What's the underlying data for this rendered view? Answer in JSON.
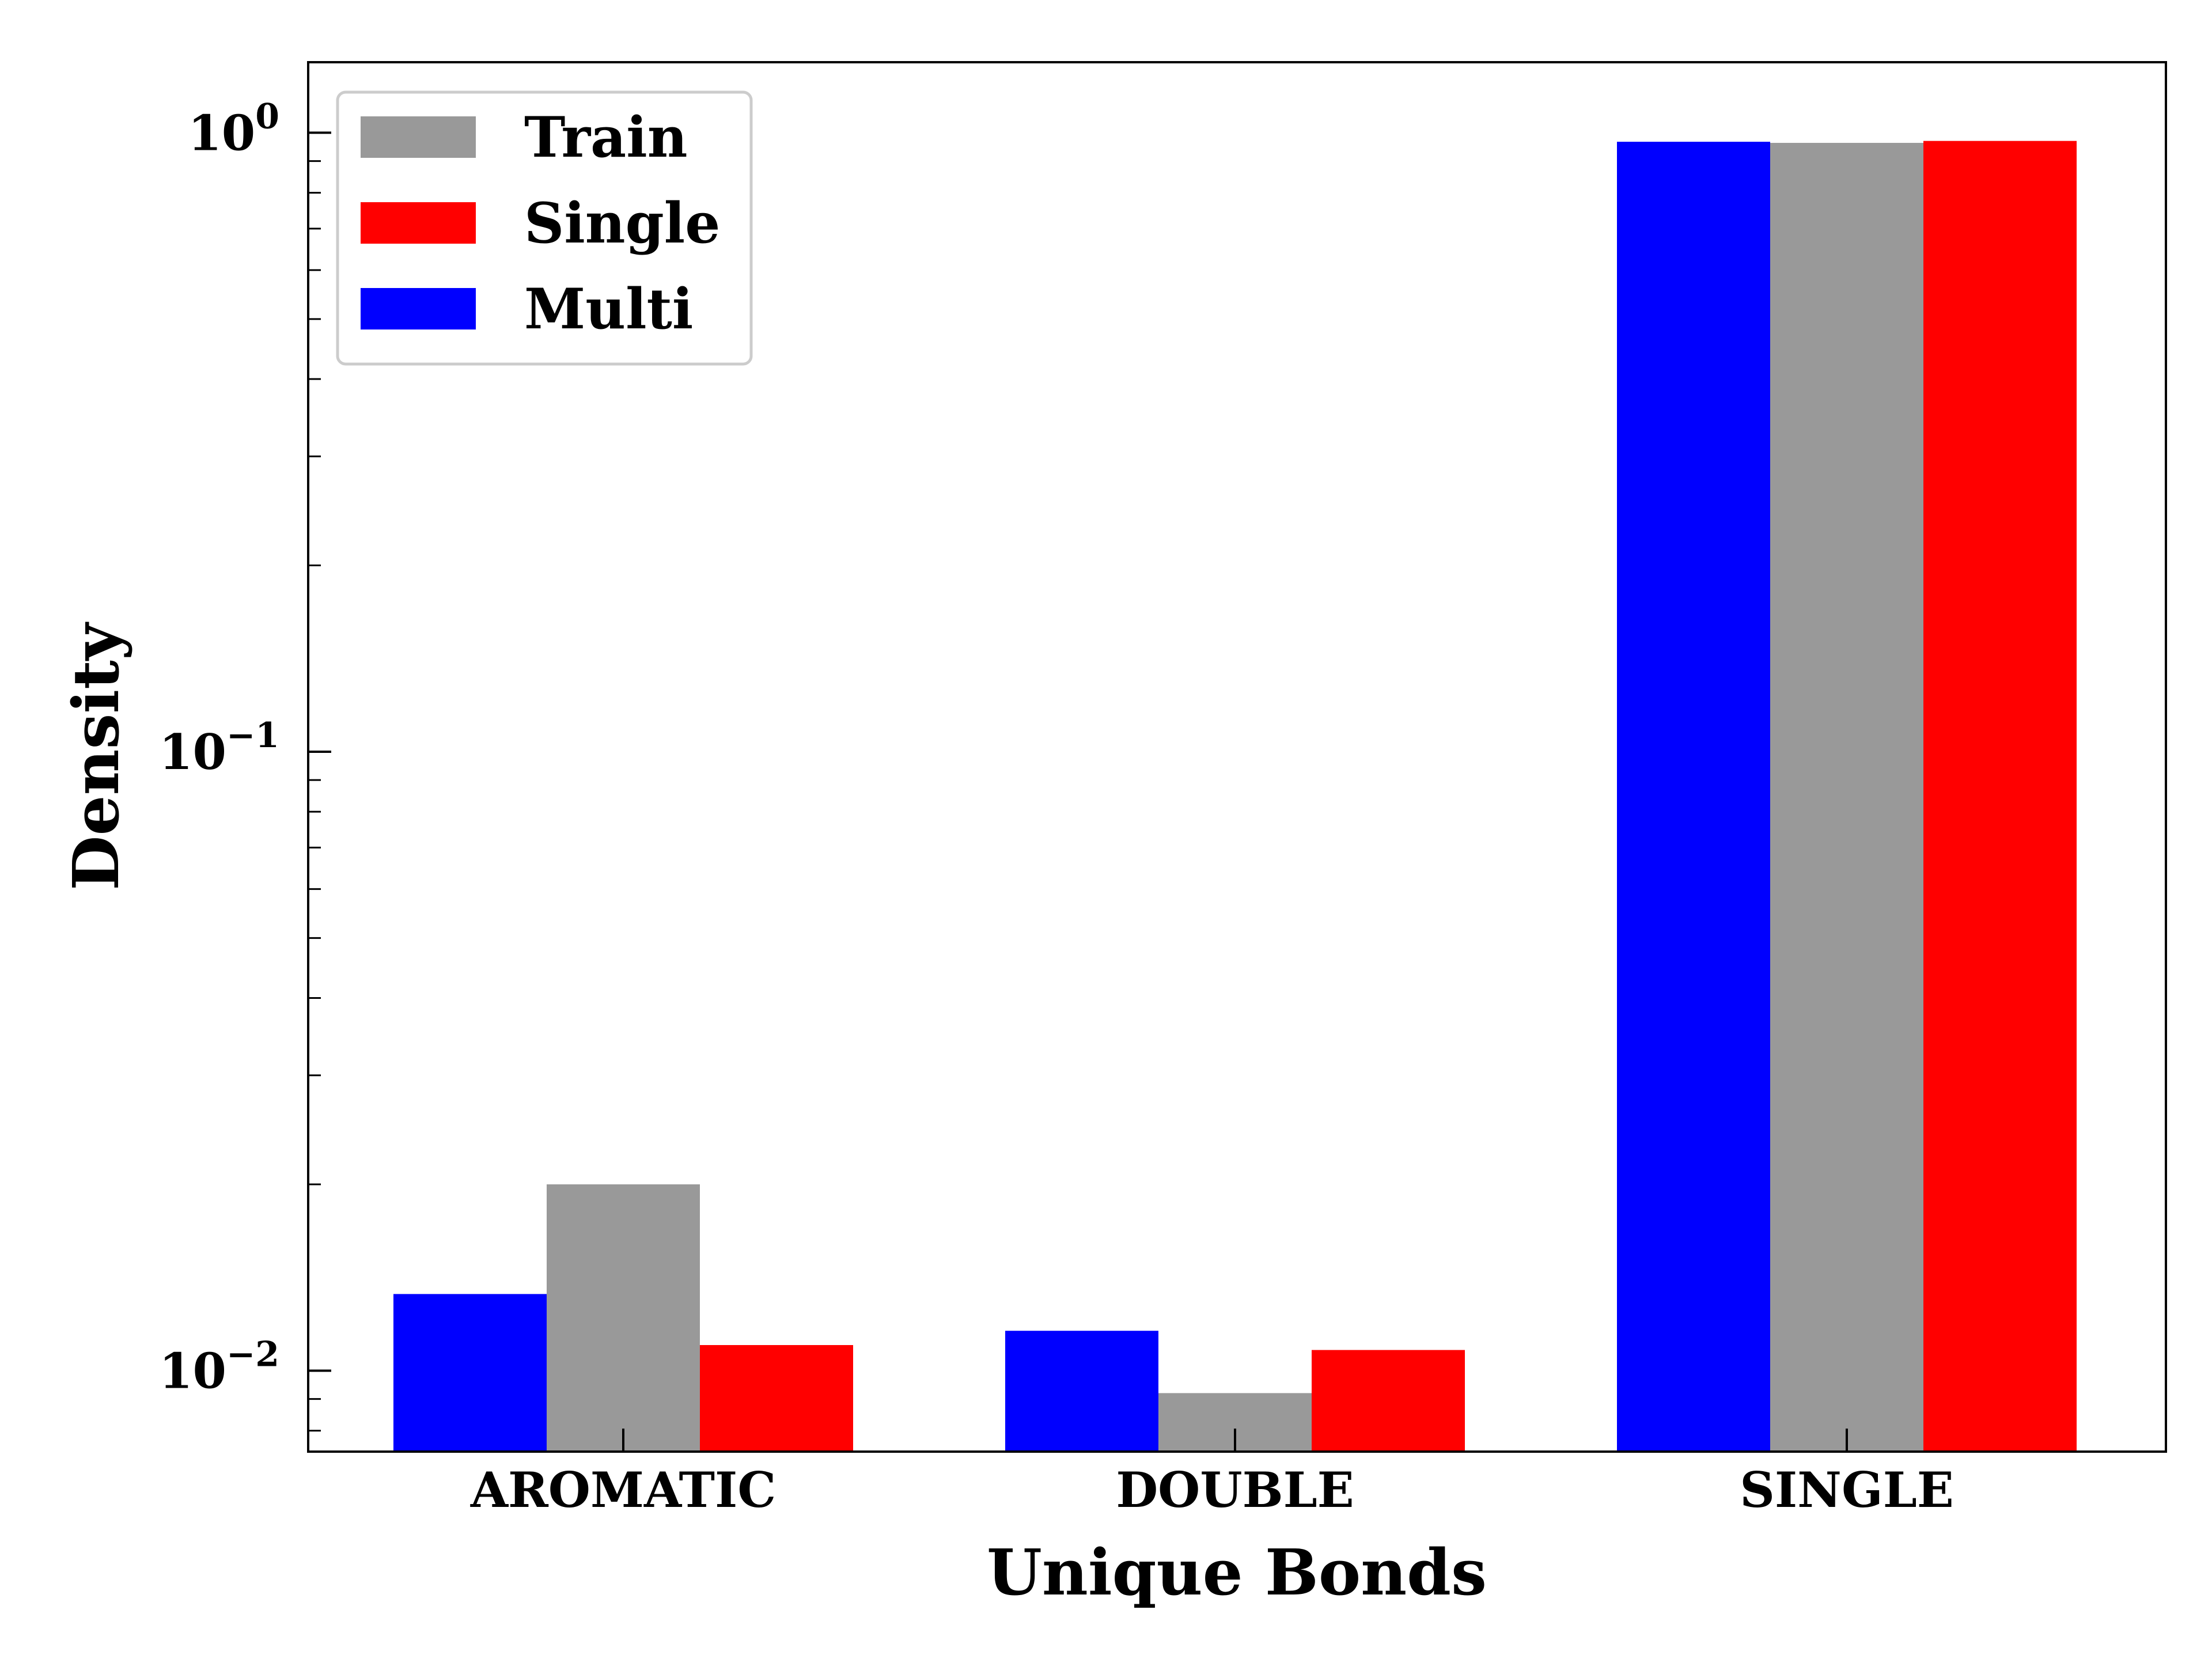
{
  "chart_data": {
    "type": "bar",
    "title": "",
    "xlabel": "Unique Bonds",
    "ylabel": "Density",
    "yscale": "log",
    "ylim": [
      0.0074,
      1.3
    ],
    "yticks": [
      {
        "value": 1,
        "base": "10",
        "exp": "0"
      },
      {
        "value": 0.1,
        "base": "10",
        "exp": "−1"
      },
      {
        "value": 0.01,
        "base": "10",
        "exp": "−2"
      }
    ],
    "categories": [
      "AROMATIC",
      "DOUBLE",
      "SINGLE"
    ],
    "series": [
      {
        "name": "Multi",
        "color": "#0000ff",
        "values": [
          0.0133,
          0.0116,
          0.967
        ]
      },
      {
        "name": "Train",
        "color": "#999999",
        "values": [
          0.02,
          0.0092,
          0.963
        ]
      },
      {
        "name": "Single",
        "color": "#ff0000",
        "values": [
          0.011,
          0.0108,
          0.97
        ]
      }
    ],
    "legend": {
      "position": "top-left",
      "entries": [
        {
          "name": "Train",
          "color": "#999999"
        },
        {
          "name": "Single",
          "color": "#ff0000"
        },
        {
          "name": "Multi",
          "color": "#0000ff"
        }
      ]
    },
    "grid": false
  }
}
